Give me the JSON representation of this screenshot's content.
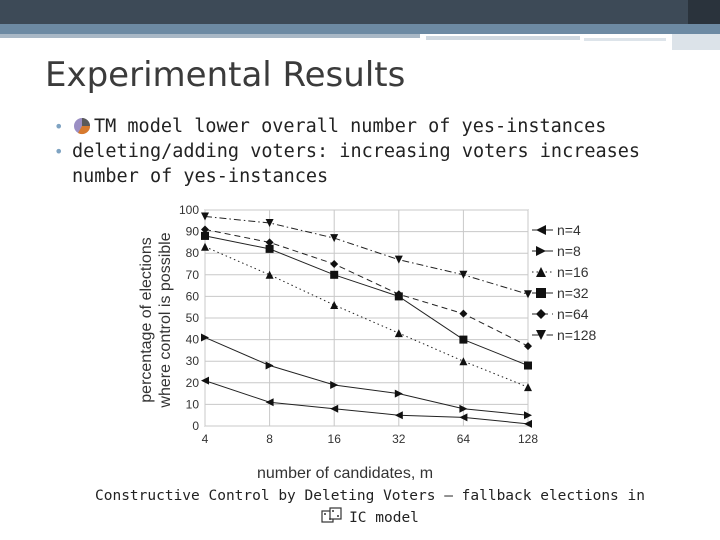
{
  "slide": {
    "title": "Experimental Results",
    "bullets": [
      {
        "text": "TM model lower overall number of yes-instances",
        "icon": "pie-chart-icon"
      },
      {
        "text": "deleting/adding voters: increasing voters increases number of yes-instances"
      }
    ],
    "caption_line1": "Constructive Control by Deleting Voters – fallback elections in",
    "caption_line2": "IC model",
    "caption_icon": "dice-icon"
  },
  "chart_data": {
    "type": "line",
    "xlabel": "number of candidates, m",
    "ylabel_line1": "percentage of elections",
    "ylabel_line2": "where control is possible",
    "categories": [
      "4",
      "8",
      "16",
      "32",
      "64",
      "128"
    ],
    "ylim": [
      0,
      100
    ],
    "yticks": [
      0,
      10,
      20,
      30,
      40,
      50,
      60,
      70,
      80,
      90,
      100
    ],
    "grid": true,
    "legend_position": "right",
    "series": [
      {
        "name": "n=4",
        "marker": "triangle-left",
        "dash": "solid",
        "values": [
          21,
          11,
          8,
          5,
          4,
          1
        ]
      },
      {
        "name": "n=8",
        "marker": "triangle-right",
        "dash": "solid",
        "values": [
          41,
          28,
          19,
          15,
          8,
          5
        ]
      },
      {
        "name": "n=16",
        "marker": "triangle-up",
        "dash": "dotted",
        "values": [
          83,
          70,
          56,
          43,
          30,
          18
        ]
      },
      {
        "name": "n=32",
        "marker": "square",
        "dash": "solid",
        "values": [
          88,
          82,
          70,
          60,
          40,
          28
        ]
      },
      {
        "name": "n=64",
        "marker": "diamond",
        "dash": "dashed",
        "values": [
          91,
          85,
          75,
          61,
          52,
          37
        ]
      },
      {
        "name": "n=128",
        "marker": "triangle-down",
        "dash": "dashdot",
        "values": [
          97,
          94,
          87,
          77,
          70,
          61
        ]
      }
    ]
  }
}
